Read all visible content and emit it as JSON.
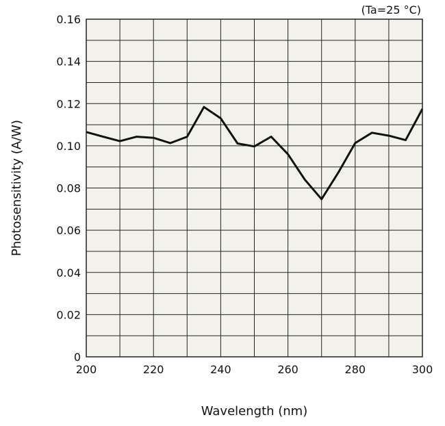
{
  "chart_data": {
    "type": "line",
    "title": "",
    "annotation": "(Ta=25 °C)",
    "xlabel": "Wavelength (nm)",
    "ylabel": "Photosensitivity (A/W)",
    "xlim": [
      200,
      300
    ],
    "ylim": [
      0,
      0.16
    ],
    "x_ticks": [
      "200",
      "220",
      "240",
      "260",
      "280",
      "300"
    ],
    "y_ticks": [
      "0",
      "0.02",
      "0.04",
      "0.06",
      "0.08",
      "0.10",
      "0.12",
      "0.14",
      "0.16"
    ],
    "grid": true,
    "colors": {
      "plot_background": "#f2f1ea",
      "grid": "#222222",
      "line": "#111111"
    },
    "series": [
      {
        "x": [
          200,
          205,
          210,
          215,
          220,
          225,
          230,
          235,
          240,
          245,
          250,
          255,
          260,
          265,
          270,
          275,
          280,
          285,
          290,
          295,
          300
        ],
        "y": [
          0.1065,
          0.1043,
          0.1022,
          0.1043,
          0.1038,
          0.1013,
          0.1043,
          0.1184,
          0.113,
          0.1011,
          0.0997,
          0.1043,
          0.096,
          0.084,
          0.0747,
          0.0874,
          0.1013,
          0.1062,
          0.1048,
          0.1027,
          0.1175
        ]
      }
    ]
  }
}
